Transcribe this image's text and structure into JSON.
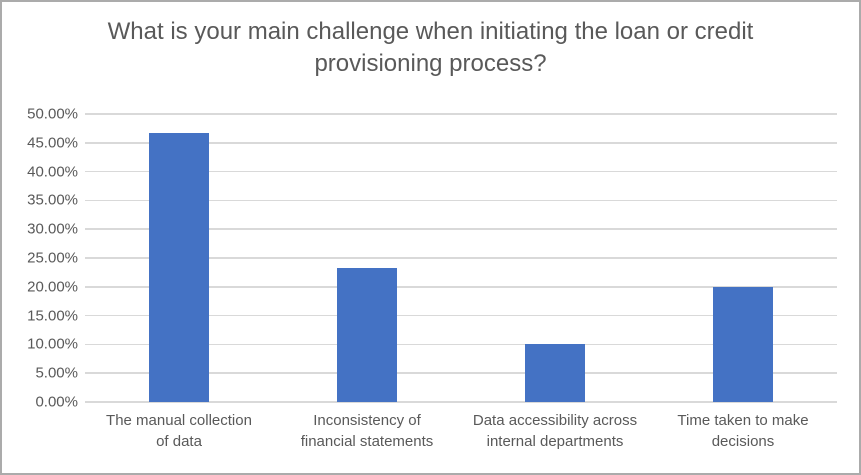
{
  "chart_data": {
    "type": "bar",
    "title": "What is your main challenge when initiating the loan or credit provisioning process?",
    "categories": [
      "The manual collection of data",
      "Inconsistency of financial statements",
      "Data accessibility across internal departments",
      "Time taken to make decisions"
    ],
    "category_display_lines": [
      [
        "The manual collection",
        "of data"
      ],
      [
        "Inconsistency of",
        "financial statements"
      ],
      [
        "Data accessibility across",
        "internal departments"
      ],
      [
        "Time taken to make",
        "decisions"
      ]
    ],
    "values": [
      46.67,
      23.33,
      10.0,
      20.0
    ],
    "unit": "percent",
    "xlabel": "",
    "ylabel": "",
    "ylim": [
      0,
      50
    ],
    "y_tick_step": 5,
    "y_tick_labels": [
      "0.00%",
      "5.00%",
      "10.00%",
      "15.00%",
      "20.00%",
      "25.00%",
      "30.00%",
      "35.00%",
      "40.00%",
      "45.00%",
      "50.00%"
    ],
    "grid": true,
    "legend_position": "none",
    "colors": {
      "bar": "#4472C4",
      "gridline": "#D9D9D9",
      "axis_text": "#595959",
      "title_text": "#595959",
      "chart_border": "#ABABAB",
      "background": "#FFFFFF"
    }
  }
}
